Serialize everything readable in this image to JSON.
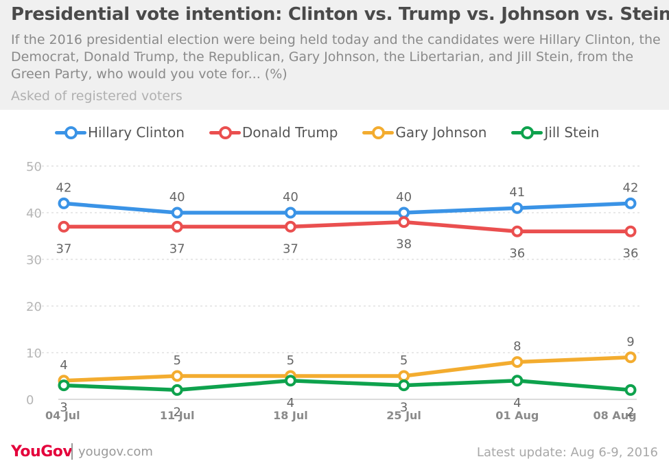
{
  "header": {
    "title": "Presidential vote intention: Clinton vs. Trump vs. Johnson vs. Stein",
    "subtitle": "If the 2016 presidential election were being held today and the candidates were Hillary Clinton, the Democrat, Donald Trump, the Republican, Gary Johnson, the Libertarian, and Jill Stein, from the Green Party, who would you vote for... (%)",
    "note": "Asked of registered voters"
  },
  "chart_data": {
    "type": "line",
    "title": "Presidential vote intention: Clinton vs. Trump vs. Johnson vs. Stein",
    "subtitle": "If the 2016 presidential election were being held today and the candidates were Hillary Clinton, the Democrat, Donald Trump, the Republican, Gary Johnson, the Libertarian, and Jill Stein, from the Green Party, who would you vote for... (%)",
    "x": [
      "04 Jul",
      "11 Jul",
      "18 Jul",
      "25 Jul",
      "01 Aug",
      "08 Aug"
    ],
    "ylim": [
      0,
      50
    ],
    "yticks": [
      0,
      10,
      20,
      30,
      40,
      50
    ],
    "grid": true,
    "legend": "top",
    "series": [
      {
        "name": "Hillary Clinton",
        "color": "#3a93e6",
        "values": [
          42,
          40,
          40,
          40,
          41,
          42
        ]
      },
      {
        "name": "Donald Trump",
        "color": "#ea4f4f",
        "values": [
          37,
          37,
          37,
          38,
          36,
          36
        ]
      },
      {
        "name": "Gary Johnson",
        "color": "#f3ac2f",
        "values": [
          4,
          5,
          5,
          5,
          8,
          9
        ]
      },
      {
        "name": "Jill Stein",
        "color": "#0ea24d",
        "values": [
          3,
          2,
          4,
          3,
          4,
          2
        ]
      }
    ]
  },
  "footer": {
    "logo": "YouGov",
    "url": "yougov.com",
    "update": "Latest update: Aug 6-9, 2016"
  }
}
